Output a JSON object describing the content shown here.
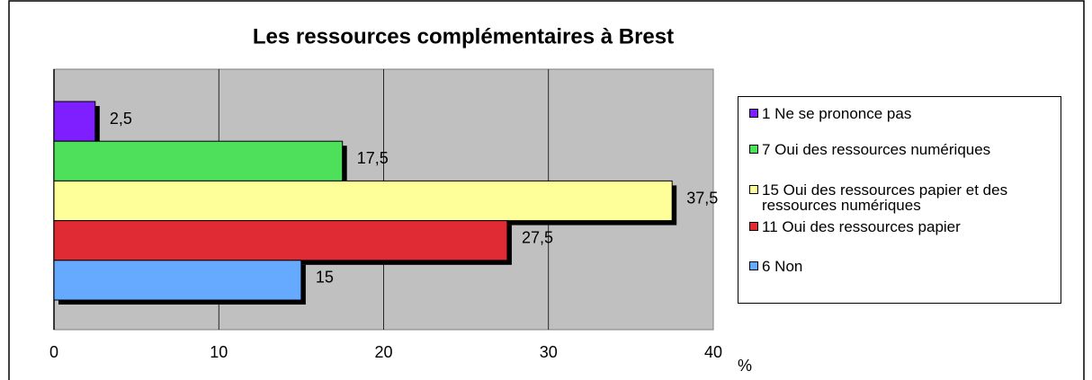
{
  "chart_data": {
    "type": "hbar",
    "title": "Les ressources complémentaires à Brest",
    "categories": [
      "1 Ne se prononce pas",
      "7 Oui des ressources numériques",
      "15 Oui des ressources papier et des ressources numériques",
      "11 Oui des ressources papier",
      "6 Non"
    ],
    "values": [
      2.5,
      17.5,
      37.5,
      27.5,
      15
    ],
    "value_labels": [
      "2,5",
      "17,5",
      "37,5",
      "27,5",
      "15"
    ],
    "colors": [
      "#7f1fff",
      "#4ee05a",
      "#ffff99",
      "#e02b35",
      "#66aaff"
    ],
    "xlim": [
      0,
      40
    ],
    "xticks": [
      0,
      10,
      20,
      30,
      40
    ],
    "xlabel": "%",
    "grid": true,
    "legend": "right"
  }
}
